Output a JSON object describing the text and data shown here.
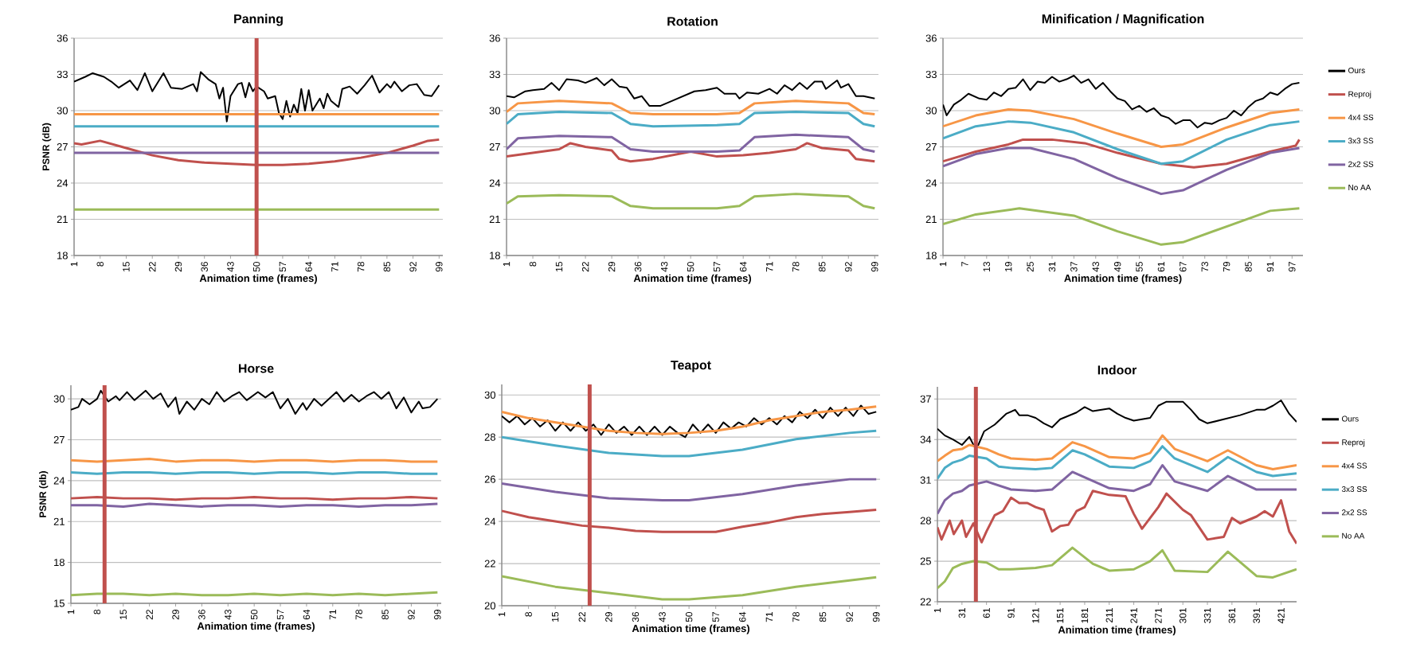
{
  "chart_data": [
    {
      "type": "line",
      "title": "Panning",
      "xlabel": "Animation time (frames)",
      "ylabel": "PSNR (dB)",
      "xlim": [
        1,
        100
      ],
      "xticks": [
        1,
        8,
        15,
        22,
        29,
        36,
        43,
        50,
        57,
        64,
        71,
        78,
        85,
        92,
        99
      ],
      "ylim": [
        18,
        36
      ],
      "yticks": [
        18,
        21,
        24,
        27,
        30,
        33,
        36
      ],
      "grid": "y",
      "ref_lines": [
        {
          "axis": "x",
          "value": 50,
          "color": "#c0504d"
        }
      ],
      "series": [
        {
          "color": "#000000",
          "x": [
            1,
            4,
            6,
            9,
            11,
            13,
            16,
            18,
            20,
            22,
            25,
            27,
            30,
            33,
            34,
            35,
            37,
            39,
            40,
            41,
            42,
            43,
            45,
            46,
            47,
            48,
            49,
            50,
            52,
            53,
            55,
            56,
            57,
            58,
            59,
            60,
            61,
            62,
            63,
            64,
            65,
            67,
            68,
            69,
            70,
            72,
            73,
            75,
            77,
            79,
            81,
            83,
            85,
            86,
            87,
            89,
            91,
            93,
            95,
            97,
            99
          ],
          "values": [
            32.4,
            32.8,
            33.1,
            32.8,
            32.4,
            31.9,
            32.5,
            31.7,
            33.1,
            31.6,
            33.1,
            31.9,
            31.8,
            32.2,
            31.6,
            33.2,
            32.6,
            32.2,
            31.0,
            31.9,
            29.1,
            31.2,
            32.2,
            32.3,
            31.1,
            32.3,
            31.6,
            32.0,
            31.6,
            31.0,
            31.2,
            29.8,
            29.3,
            30.8,
            29.5,
            30.5,
            29.8,
            31.8,
            30.0,
            31.7,
            30.0,
            31.0,
            30.2,
            31.4,
            30.8,
            30.3,
            31.8,
            32.0,
            31.4,
            32.1,
            32.9,
            31.5,
            32.2,
            31.9,
            32.4,
            31.6,
            32.1,
            32.2,
            31.3,
            31.2,
            32.1
          ]
        },
        {
          "color": "#c0504d",
          "x": [
            1,
            3,
            8,
            15,
            22,
            29,
            36,
            43,
            50,
            57,
            64,
            71,
            78,
            85,
            92,
            96,
            99
          ],
          "values": [
            27.3,
            27.2,
            27.5,
            26.9,
            26.3,
            25.9,
            25.7,
            25.6,
            25.5,
            25.5,
            25.6,
            25.8,
            26.1,
            26.5,
            27.1,
            27.5,
            27.6
          ]
        },
        {
          "color": "#f79646",
          "x": [
            1,
            99
          ],
          "values": [
            29.7,
            29.7
          ]
        },
        {
          "color": "#4bacc6",
          "x": [
            1,
            99
          ],
          "values": [
            28.7,
            28.7
          ]
        },
        {
          "color": "#8064a2",
          "x": [
            1,
            99
          ],
          "values": [
            26.5,
            26.5
          ]
        },
        {
          "color": "#9bbb59",
          "x": [
            1,
            99
          ],
          "values": [
            21.8,
            21.8
          ]
        }
      ]
    },
    {
      "type": "line",
      "title": "Rotation",
      "xlabel": "Animation time (frames)",
      "xlim": [
        1,
        100
      ],
      "xticks": [
        1,
        8,
        15,
        22,
        29,
        36,
        43,
        50,
        57,
        64,
        71,
        78,
        85,
        92,
        99
      ],
      "ylim": [
        18,
        36
      ],
      "yticks": [
        18,
        21,
        24,
        27,
        30,
        33,
        36
      ],
      "grid": "y",
      "series": [
        {
          "color": "#000000",
          "x": [
            1,
            3,
            6,
            8,
            11,
            13,
            15,
            17,
            20,
            22,
            25,
            27,
            29,
            31,
            33,
            35,
            37,
            39,
            42,
            45,
            48,
            51,
            54,
            57,
            59,
            62,
            63,
            65,
            68,
            71,
            73,
            75,
            77,
            79,
            81,
            83,
            85,
            86,
            89,
            90,
            92,
            94,
            96,
            99
          ],
          "values": [
            31.2,
            31.1,
            31.6,
            31.7,
            31.8,
            32.3,
            31.7,
            32.6,
            32.5,
            32.3,
            32.7,
            32.1,
            32.6,
            32.0,
            31.9,
            31.0,
            31.2,
            30.4,
            30.4,
            30.8,
            31.2,
            31.6,
            31.7,
            31.9,
            31.4,
            31.4,
            31.0,
            31.5,
            31.4,
            31.8,
            31.4,
            32.1,
            31.7,
            32.3,
            31.8,
            32.4,
            32.4,
            31.8,
            32.5,
            31.9,
            32.2,
            31.2,
            31.2,
            31.0
          ]
        },
        {
          "color": "#c0504d",
          "x": [
            1,
            8,
            15,
            18,
            22,
            29,
            31,
            34,
            40,
            50,
            57,
            64,
            71,
            78,
            81,
            85,
            92,
            94,
            99
          ],
          "values": [
            26.2,
            26.5,
            26.8,
            27.3,
            27.0,
            26.7,
            26.0,
            25.8,
            26.0,
            26.6,
            26.2,
            26.3,
            26.5,
            26.8,
            27.3,
            26.9,
            26.7,
            26.0,
            25.8
          ]
        },
        {
          "color": "#f79646",
          "x": [
            1,
            4,
            15,
            29,
            34,
            40,
            57,
            63,
            67,
            78,
            92,
            96,
            99
          ],
          "values": [
            29.9,
            30.6,
            30.8,
            30.6,
            29.8,
            29.7,
            29.7,
            29.8,
            30.6,
            30.8,
            30.6,
            29.8,
            29.7
          ]
        },
        {
          "color": "#4bacc6",
          "x": [
            1,
            4,
            15,
            29,
            34,
            40,
            57,
            63,
            67,
            78,
            92,
            96,
            99
          ],
          "values": [
            28.9,
            29.7,
            29.9,
            29.8,
            28.9,
            28.7,
            28.8,
            28.9,
            29.8,
            29.9,
            29.8,
            28.9,
            28.7
          ]
        },
        {
          "color": "#8064a2",
          "x": [
            1,
            4,
            15,
            29,
            34,
            40,
            57,
            63,
            67,
            78,
            92,
            96,
            99
          ],
          "values": [
            26.8,
            27.7,
            27.9,
            27.8,
            26.8,
            26.6,
            26.6,
            26.7,
            27.8,
            28.0,
            27.8,
            26.8,
            26.6
          ]
        },
        {
          "color": "#9bbb59",
          "x": [
            1,
            4,
            15,
            29,
            34,
            40,
            57,
            63,
            67,
            78,
            92,
            96,
            99
          ],
          "values": [
            22.3,
            22.9,
            23.0,
            22.9,
            22.1,
            21.9,
            21.9,
            22.1,
            22.9,
            23.1,
            22.9,
            22.1,
            21.9
          ]
        }
      ]
    },
    {
      "type": "line",
      "title": "Minification / Magnification",
      "xlabel": "Animation time (frames)",
      "xlim": [
        1,
        100
      ],
      "xticks": [
        1,
        7,
        13,
        19,
        25,
        31,
        37,
        43,
        49,
        55,
        61,
        67,
        73,
        79,
        85,
        91,
        97
      ],
      "ylim": [
        18,
        36
      ],
      "yticks": [
        18,
        21,
        24,
        27,
        30,
        33,
        36
      ],
      "grid": "y",
      "legend": "right",
      "series": [
        {
          "name": "Ours",
          "color": "#000000",
          "x": [
            1,
            2,
            4,
            6,
            8,
            11,
            13,
            15,
            17,
            19,
            21,
            23,
            25,
            27,
            29,
            31,
            33,
            35,
            37,
            39,
            41,
            43,
            45,
            47,
            49,
            51,
            53,
            55,
            57,
            59,
            61,
            63,
            65,
            67,
            69,
            71,
            73,
            75,
            77,
            79,
            81,
            83,
            85,
            87,
            89,
            91,
            93,
            95,
            97,
            99
          ],
          "values": [
            30.5,
            29.6,
            30.5,
            30.9,
            31.4,
            31.0,
            30.9,
            31.5,
            31.2,
            31.8,
            31.9,
            32.6,
            31.7,
            32.4,
            32.3,
            32.8,
            32.4,
            32.6,
            32.9,
            32.3,
            32.6,
            31.8,
            32.3,
            31.6,
            31.0,
            30.8,
            30.1,
            30.4,
            29.9,
            30.2,
            29.6,
            29.4,
            28.9,
            29.2,
            29.2,
            28.6,
            29.0,
            28.9,
            29.2,
            29.4,
            30.0,
            29.6,
            30.3,
            30.8,
            31.0,
            31.5,
            31.3,
            31.8,
            32.2,
            32.3
          ]
        },
        {
          "name": "Reproj",
          "color": "#c0504d",
          "x": [
            1,
            10,
            19,
            23,
            31,
            40,
            49,
            61,
            70,
            79,
            91,
            98,
            99
          ],
          "values": [
            25.8,
            26.6,
            27.2,
            27.6,
            27.6,
            27.3,
            26.5,
            25.6,
            25.3,
            25.6,
            26.6,
            27.1,
            27.6
          ]
        },
        {
          "name": "4x4 SS",
          "color": "#f79646",
          "x": [
            1,
            10,
            19,
            25,
            37,
            49,
            61,
            67,
            79,
            91,
            99
          ],
          "values": [
            28.7,
            29.6,
            30.1,
            30.0,
            29.3,
            28.1,
            27.0,
            27.2,
            28.6,
            29.8,
            30.1
          ]
        },
        {
          "name": "3x3 SS",
          "color": "#4bacc6",
          "x": [
            1,
            10,
            19,
            25,
            37,
            49,
            61,
            67,
            79,
            91,
            99
          ],
          "values": [
            27.7,
            28.7,
            29.1,
            29.0,
            28.2,
            26.8,
            25.6,
            25.8,
            27.6,
            28.8,
            29.1
          ]
        },
        {
          "name": "2x2 SS",
          "color": "#8064a2",
          "x": [
            1,
            10,
            19,
            25,
            37,
            49,
            61,
            67,
            79,
            91,
            99
          ],
          "values": [
            25.4,
            26.4,
            26.9,
            26.9,
            26.0,
            24.4,
            23.1,
            23.4,
            25.1,
            26.5,
            26.9
          ]
        },
        {
          "name": "No AA",
          "color": "#9bbb59",
          "x": [
            1,
            10,
            22,
            37,
            49,
            61,
            67,
            79,
            91,
            99
          ],
          "values": [
            20.6,
            21.4,
            21.9,
            21.3,
            20.0,
            18.9,
            19.1,
            20.4,
            21.7,
            21.9
          ]
        }
      ]
    },
    {
      "type": "line",
      "title": "Horse",
      "xlabel": "Animation time (frames)",
      "ylabel": "PSNR (db)",
      "xlim": [
        1,
        100
      ],
      "xticks": [
        1,
        8,
        15,
        22,
        29,
        36,
        43,
        50,
        57,
        64,
        71,
        78,
        85,
        92,
        99
      ],
      "ylim": [
        15,
        31
      ],
      "yticks": [
        15,
        18,
        21,
        24,
        27,
        30
      ],
      "grid": "y",
      "ref_lines": [
        {
          "axis": "x",
          "value": 10,
          "color": "#c0504d"
        }
      ],
      "series": [
        {
          "color": "#000000",
          "x": [
            1,
            3,
            4,
            6,
            8,
            9,
            11,
            13,
            14,
            16,
            18,
            21,
            23,
            25,
            27,
            29,
            30,
            32,
            34,
            36,
            38,
            40,
            42,
            44,
            46,
            48,
            51,
            53,
            55,
            57,
            59,
            61,
            63,
            64,
            66,
            68,
            70,
            72,
            74,
            76,
            78,
            80,
            82,
            84,
            86,
            88,
            90,
            92,
            94,
            95,
            97,
            99
          ],
          "values": [
            29.2,
            29.4,
            30.0,
            29.6,
            30.0,
            30.6,
            29.8,
            30.2,
            29.9,
            30.5,
            29.9,
            30.6,
            30.0,
            30.4,
            29.4,
            30.1,
            28.9,
            29.8,
            29.2,
            30.0,
            29.6,
            30.5,
            29.8,
            30.2,
            30.5,
            29.9,
            30.5,
            30.1,
            30.5,
            29.3,
            30.0,
            28.9,
            29.7,
            29.2,
            30.0,
            29.5,
            30.0,
            30.5,
            29.8,
            30.3,
            29.8,
            30.2,
            30.5,
            30.0,
            30.5,
            29.3,
            30.1,
            29.0,
            29.8,
            29.3,
            29.4,
            30.0
          ]
        },
        {
          "color": "#c0504d",
          "x": [
            1,
            8,
            15,
            22,
            29,
            36,
            43,
            50,
            57,
            64,
            71,
            78,
            85,
            92,
            99
          ],
          "values": [
            22.7,
            22.8,
            22.7,
            22.7,
            22.6,
            22.7,
            22.7,
            22.8,
            22.7,
            22.7,
            22.6,
            22.7,
            22.7,
            22.8,
            22.7
          ]
        },
        {
          "color": "#f79646",
          "x": [
            1,
            8,
            15,
            22,
            29,
            36,
            43,
            50,
            57,
            64,
            71,
            78,
            85,
            92,
            99
          ],
          "values": [
            25.5,
            25.4,
            25.5,
            25.6,
            25.4,
            25.5,
            25.5,
            25.4,
            25.5,
            25.5,
            25.4,
            25.5,
            25.5,
            25.4,
            25.4
          ]
        },
        {
          "color": "#4bacc6",
          "x": [
            1,
            8,
            15,
            22,
            29,
            36,
            43,
            50,
            57,
            64,
            71,
            78,
            85,
            92,
            99
          ],
          "values": [
            24.6,
            24.5,
            24.6,
            24.6,
            24.5,
            24.6,
            24.6,
            24.5,
            24.6,
            24.6,
            24.5,
            24.6,
            24.6,
            24.5,
            24.5
          ]
        },
        {
          "color": "#8064a2",
          "x": [
            1,
            8,
            15,
            22,
            29,
            36,
            43,
            50,
            57,
            64,
            71,
            78,
            85,
            92,
            99
          ],
          "values": [
            22.2,
            22.2,
            22.1,
            22.3,
            22.2,
            22.1,
            22.2,
            22.2,
            22.1,
            22.2,
            22.2,
            22.1,
            22.2,
            22.2,
            22.3
          ]
        },
        {
          "color": "#9bbb59",
          "x": [
            1,
            8,
            15,
            22,
            29,
            36,
            43,
            50,
            57,
            64,
            71,
            78,
            85,
            92,
            99
          ],
          "values": [
            15.6,
            15.7,
            15.7,
            15.6,
            15.7,
            15.6,
            15.6,
            15.7,
            15.6,
            15.7,
            15.6,
            15.7,
            15.6,
            15.7,
            15.8
          ]
        }
      ]
    },
    {
      "type": "line",
      "title": "Teapot",
      "xlabel": "Animation time (frames)",
      "xlim": [
        1,
        100
      ],
      "xticks": [
        1,
        8,
        15,
        22,
        29,
        36,
        43,
        50,
        57,
        64,
        71,
        78,
        85,
        92,
        99
      ],
      "ylim": [
        20,
        30.5
      ],
      "yticks": [
        20,
        22,
        24,
        26,
        28,
        30
      ],
      "grid": "y",
      "ref_lines": [
        {
          "axis": "x",
          "value": 24,
          "color": "#c0504d"
        }
      ],
      "series": [
        {
          "color": "#000000",
          "x": [
            1,
            3,
            5,
            7,
            9,
            11,
            13,
            15,
            17,
            19,
            21,
            23,
            25,
            27,
            29,
            31,
            33,
            35,
            37,
            39,
            41,
            43,
            45,
            47,
            49,
            51,
            53,
            55,
            57,
            59,
            61,
            63,
            65,
            67,
            69,
            71,
            73,
            75,
            77,
            79,
            81,
            83,
            85,
            87,
            89,
            91,
            93,
            95,
            97,
            99
          ],
          "values": [
            29.0,
            28.7,
            29.0,
            28.6,
            28.9,
            28.5,
            28.8,
            28.3,
            28.7,
            28.3,
            28.7,
            28.3,
            28.6,
            28.1,
            28.6,
            28.2,
            28.5,
            28.1,
            28.5,
            28.1,
            28.5,
            28.1,
            28.5,
            28.2,
            28.0,
            28.6,
            28.2,
            28.6,
            28.2,
            28.7,
            28.4,
            28.7,
            28.5,
            28.9,
            28.6,
            28.9,
            28.6,
            29.0,
            28.7,
            29.2,
            28.9,
            29.3,
            28.9,
            29.4,
            29.0,
            29.4,
            29.0,
            29.5,
            29.1,
            29.2
          ]
        },
        {
          "color": "#c0504d",
          "x": [
            1,
            8,
            15,
            22,
            29,
            36,
            43,
            50,
            57,
            64,
            71,
            78,
            85,
            92,
            99
          ],
          "values": [
            24.5,
            24.2,
            24.0,
            23.8,
            23.7,
            23.55,
            23.5,
            23.5,
            23.5,
            23.75,
            23.95,
            24.2,
            24.35,
            24.45,
            24.55
          ]
        },
        {
          "color": "#f79646",
          "x": [
            1,
            8,
            15,
            22,
            29,
            36,
            43,
            50,
            57,
            64,
            71,
            78,
            85,
            92,
            99
          ],
          "values": [
            29.2,
            28.9,
            28.7,
            28.5,
            28.3,
            28.2,
            28.15,
            28.2,
            28.3,
            28.5,
            28.8,
            29.0,
            29.2,
            29.3,
            29.45
          ]
        },
        {
          "color": "#4bacc6",
          "x": [
            1,
            15,
            29,
            43,
            50,
            64,
            78,
            92,
            99
          ],
          "values": [
            28.0,
            27.6,
            27.25,
            27.1,
            27.1,
            27.4,
            27.9,
            28.2,
            28.3
          ]
        },
        {
          "color": "#8064a2",
          "x": [
            1,
            15,
            29,
            43,
            50,
            64,
            78,
            92,
            99
          ],
          "values": [
            25.8,
            25.4,
            25.1,
            25.0,
            25.0,
            25.3,
            25.7,
            26.0,
            26.0
          ]
        },
        {
          "color": "#9bbb59",
          "x": [
            1,
            15,
            29,
            43,
            50,
            64,
            78,
            92,
            99
          ],
          "values": [
            21.4,
            20.9,
            20.6,
            20.3,
            20.3,
            20.5,
            20.9,
            21.2,
            21.35
          ]
        }
      ]
    },
    {
      "type": "line",
      "title": "Indoor",
      "xlabel": "Animation time (frames)",
      "xlim": [
        1,
        440
      ],
      "xticks": [
        1,
        31,
        61,
        91,
        121,
        151,
        181,
        211,
        241,
        271,
        301,
        331,
        361,
        391,
        421
      ],
      "ylim": [
        22,
        37.9
      ],
      "yticks": [
        22,
        25,
        28,
        31,
        34,
        37
      ],
      "grid": "y",
      "legend": "right",
      "ref_lines": [
        {
          "axis": "x",
          "value": 48,
          "color": "#c0504d"
        }
      ],
      "series": [
        {
          "name": "Ours",
          "color": "#000000",
          "x": [
            1,
            10,
            20,
            31,
            40,
            46,
            51,
            58,
            71,
            85,
            96,
            101,
            111,
            121,
            131,
            141,
            151,
            171,
            181,
            191,
            211,
            221,
            231,
            241,
            251,
            261,
            271,
            281,
            301,
            311,
            321,
            331,
            351,
            371,
            391,
            401,
            411,
            421,
            431,
            440
          ],
          "values": [
            34.8,
            34.3,
            34.0,
            33.6,
            34.2,
            33.5,
            33.6,
            34.6,
            35.1,
            35.9,
            36.2,
            35.8,
            35.8,
            35.6,
            35.2,
            34.9,
            35.5,
            36.0,
            36.4,
            36.1,
            36.3,
            35.9,
            35.6,
            35.4,
            35.5,
            35.6,
            36.5,
            36.8,
            36.8,
            36.2,
            35.5,
            35.2,
            35.5,
            35.8,
            36.2,
            36.2,
            36.5,
            36.9,
            35.9,
            35.3
          ]
        },
        {
          "name": "Reproj",
          "color": "#c0504d",
          "x": [
            1,
            6,
            16,
            21,
            31,
            36,
            45,
            55,
            61,
            71,
            81,
            91,
            101,
            111,
            121,
            131,
            141,
            151,
            161,
            171,
            181,
            191,
            211,
            231,
            241,
            251,
            271,
            281,
            291,
            301,
            311,
            331,
            351,
            361,
            371,
            391,
            401,
            411,
            421,
            431,
            440
          ],
          "values": [
            27.5,
            26.6,
            28.0,
            27.0,
            28.0,
            26.8,
            27.8,
            26.4,
            27.2,
            28.4,
            28.7,
            29.7,
            29.3,
            29.3,
            29.0,
            28.8,
            27.2,
            27.6,
            27.7,
            28.7,
            29.0,
            30.2,
            29.9,
            29.8,
            28.5,
            27.4,
            29.0,
            30.0,
            29.4,
            28.8,
            28.4,
            26.6,
            26.8,
            28.2,
            27.8,
            28.3,
            28.7,
            28.3,
            29.5,
            27.2,
            26.3
          ]
        },
        {
          "name": "4x4 SS",
          "color": "#f79646",
          "x": [
            1,
            10,
            20,
            31,
            40,
            61,
            76,
            91,
            121,
            141,
            166,
            181,
            211,
            241,
            261,
            276,
            291,
            331,
            356,
            391,
            411,
            440
          ],
          "values": [
            32.4,
            32.8,
            33.2,
            33.3,
            33.6,
            33.3,
            32.9,
            32.6,
            32.5,
            32.6,
            33.8,
            33.5,
            32.7,
            32.6,
            33.0,
            34.3,
            33.3,
            32.4,
            33.2,
            32.1,
            31.8,
            32.1
          ]
        },
        {
          "name": "3x3 SS",
          "color": "#4bacc6",
          "x": [
            1,
            10,
            20,
            31,
            40,
            61,
            76,
            91,
            121,
            141,
            166,
            181,
            211,
            241,
            261,
            276,
            291,
            331,
            356,
            391,
            411,
            440
          ],
          "values": [
            31.1,
            31.9,
            32.3,
            32.5,
            32.8,
            32.6,
            32.0,
            31.9,
            31.8,
            31.9,
            33.2,
            32.9,
            32.0,
            31.9,
            32.4,
            33.5,
            32.6,
            31.6,
            32.7,
            31.6,
            31.3,
            31.5
          ]
        },
        {
          "name": "2x2 SS",
          "color": "#8064a2",
          "x": [
            1,
            10,
            20,
            31,
            40,
            61,
            76,
            91,
            121,
            141,
            166,
            181,
            211,
            241,
            261,
            276,
            291,
            331,
            356,
            391,
            411,
            440
          ],
          "values": [
            28.5,
            29.5,
            30.0,
            30.2,
            30.6,
            30.9,
            30.6,
            30.3,
            30.2,
            30.3,
            31.6,
            31.2,
            30.4,
            30.2,
            30.7,
            32.1,
            30.9,
            30.2,
            31.3,
            30.3,
            30.3,
            30.3
          ]
        },
        {
          "name": "No AA",
          "color": "#9bbb59",
          "x": [
            1,
            10,
            20,
            31,
            45,
            61,
            76,
            91,
            121,
            141,
            166,
            191,
            211,
            241,
            261,
            276,
            291,
            331,
            356,
            391,
            411,
            440
          ],
          "values": [
            23.0,
            23.5,
            24.5,
            24.8,
            25.0,
            24.9,
            24.4,
            24.4,
            24.5,
            24.7,
            26.0,
            24.8,
            24.3,
            24.4,
            25.0,
            25.8,
            24.3,
            24.2,
            25.7,
            23.9,
            23.8,
            24.4
          ]
        }
      ]
    }
  ]
}
